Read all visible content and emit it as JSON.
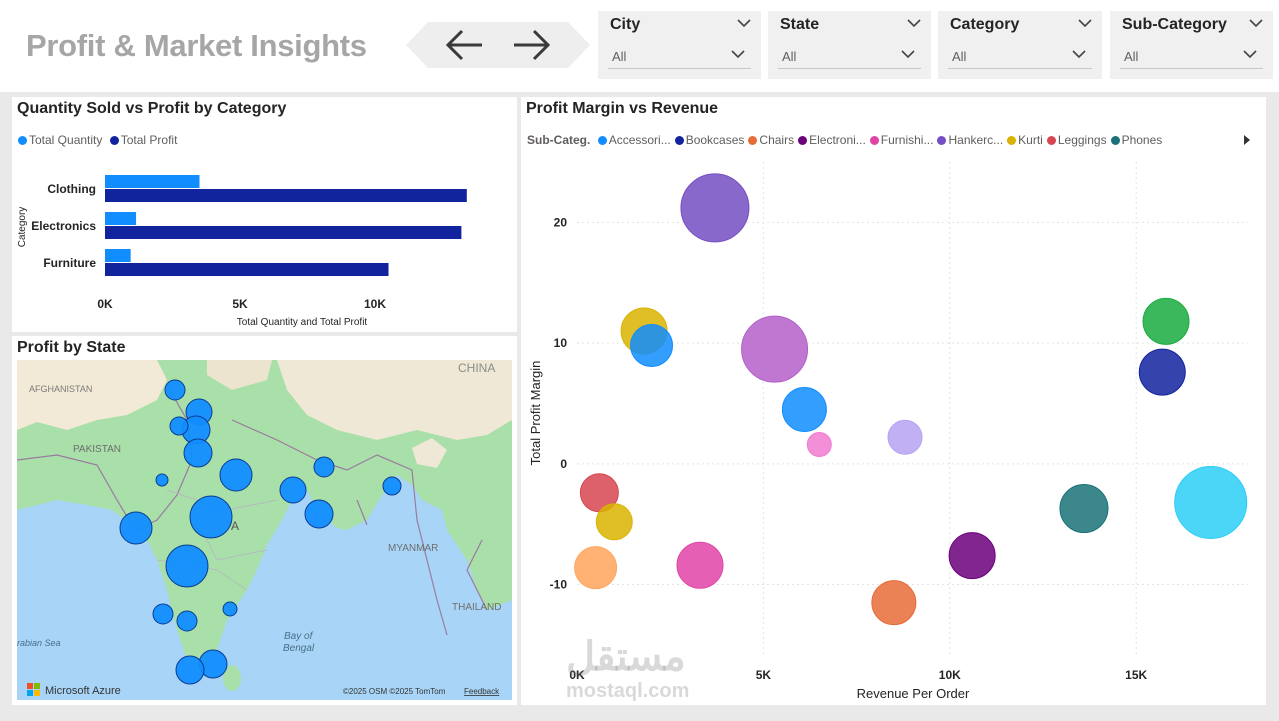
{
  "header": {
    "title": "Profit & Market Insights",
    "nav_back": "back-arrow",
    "nav_forward": "forward-arrow"
  },
  "slicers": [
    {
      "label": "City",
      "value": "All"
    },
    {
      "label": "State",
      "value": "All"
    },
    {
      "label": "Category",
      "value": "All"
    },
    {
      "label": "Sub-Category",
      "value": "All"
    }
  ],
  "colors": {
    "quantity": "#118DFF",
    "profit": "#12239E",
    "title_gray": "#A6A6A6"
  },
  "bar_chart": {
    "title": "Quantity Sold vs Profit by Category",
    "legend": [
      "Total Quantity",
      "Total Profit"
    ]
  },
  "map": {
    "title": "Profit by State",
    "labels": {
      "afghanistan": "AFGHANISTAN",
      "pakistan": "PAKISTAN",
      "china": "CHINA",
      "myanmar": "MYANMAR",
      "thailand": "THAILAND",
      "arabian_sea": "rabian Sea",
      "bay_line1": "Bay of",
      "bay_line2": "Bengal",
      "india_fragment": "A"
    },
    "brand": "Microsoft Azure",
    "copyright": "©2025 OSM  ©2025 TomTom",
    "feedback": "Feedback"
  },
  "scatter": {
    "title": "Profit Margin vs Revenue",
    "legend_title": "Sub-Categ.",
    "legend": [
      {
        "name": "Accessori...",
        "color": "#118DFF"
      },
      {
        "name": "Bookcases",
        "color": "#12239E"
      },
      {
        "name": "Chairs",
        "color": "#E66C37"
      },
      {
        "name": "Electroni...",
        "color": "#6B007B"
      },
      {
        "name": "Furnishi...",
        "color": "#E044A7"
      },
      {
        "name": "Hankerc...",
        "color": "#744EC2"
      },
      {
        "name": "Kurti",
        "color": "#D9B300"
      },
      {
        "name": "Leggings",
        "color": "#D64550"
      },
      {
        "name": "Phones",
        "color": "#197278"
      }
    ]
  },
  "watermark": {
    "arabic": "مستقل",
    "latin": "mostaql.com"
  },
  "chart_data": [
    {
      "type": "bar",
      "orientation": "horizontal",
      "title": "Quantity Sold vs Profit by Category",
      "categories": [
        "Clothing",
        "Electronics",
        "Furniture"
      ],
      "series": [
        {
          "name": "Total Quantity",
          "values": [
            3500,
            1150,
            950
          ]
        },
        {
          "name": "Total Profit",
          "values": [
            13400,
            13200,
            10500
          ]
        }
      ],
      "xlabel": "Total Quantity and Total Profit",
      "ylabel": "Category",
      "xlim": [
        0,
        14000
      ],
      "xticks": [
        0,
        5000,
        10000
      ],
      "xtick_labels": [
        "0K",
        "5K",
        "10K"
      ],
      "legend": "top-left"
    },
    {
      "type": "scatter",
      "title": "Profit Margin vs Revenue",
      "xlabel": "Revenue Per Order",
      "ylabel": "Total Profit Margin",
      "xlim": [
        0,
        18000
      ],
      "ylim": [
        -16,
        25
      ],
      "xticks": [
        0,
        5000,
        10000,
        15000
      ],
      "xtick_labels": [
        "0K",
        "5K",
        "10K",
        "15K"
      ],
      "yticks": [
        -10,
        0,
        10,
        20
      ],
      "ytick_labels": [
        "-10",
        "0",
        "10",
        "20"
      ],
      "points": [
        {
          "x": 3700,
          "y": 21.2,
          "r": 34,
          "color": "#744EC2"
        },
        {
          "x": 1800,
          "y": 11.0,
          "r": 23,
          "color": "#D9B300"
        },
        {
          "x": 2000,
          "y": 9.8,
          "r": 21,
          "color": "#118DFF"
        },
        {
          "x": 5300,
          "y": 9.5,
          "r": 33,
          "color": "#B45FC9"
        },
        {
          "x": 6100,
          "y": 4.5,
          "r": 22,
          "color": "#118DFF"
        },
        {
          "x": 6500,
          "y": 1.6,
          "r": 12,
          "color": "#F07BD0"
        },
        {
          "x": 8800,
          "y": 2.2,
          "r": 17,
          "color": "#B7A2F2"
        },
        {
          "x": 15800,
          "y": 11.8,
          "r": 23,
          "color": "#1AAB40"
        },
        {
          "x": 15700,
          "y": 7.6,
          "r": 23,
          "color": "#12239E"
        },
        {
          "x": 600,
          "y": -2.4,
          "r": 19,
          "color": "#D64550"
        },
        {
          "x": 1000,
          "y": -4.8,
          "r": 18,
          "color": "#D9B300"
        },
        {
          "x": 500,
          "y": -8.6,
          "r": 21,
          "color": "#FFA45C"
        },
        {
          "x": 3300,
          "y": -8.4,
          "r": 23,
          "color": "#E044A7"
        },
        {
          "x": 8500,
          "y": -11.5,
          "r": 22,
          "color": "#E66C37"
        },
        {
          "x": 10600,
          "y": -7.6,
          "r": 23,
          "color": "#6B007B"
        },
        {
          "x": 13600,
          "y": -3.7,
          "r": 24,
          "color": "#197278"
        },
        {
          "x": 17000,
          "y": -3.2,
          "r": 36,
          "color": "#2CCEF5"
        }
      ]
    }
  ]
}
